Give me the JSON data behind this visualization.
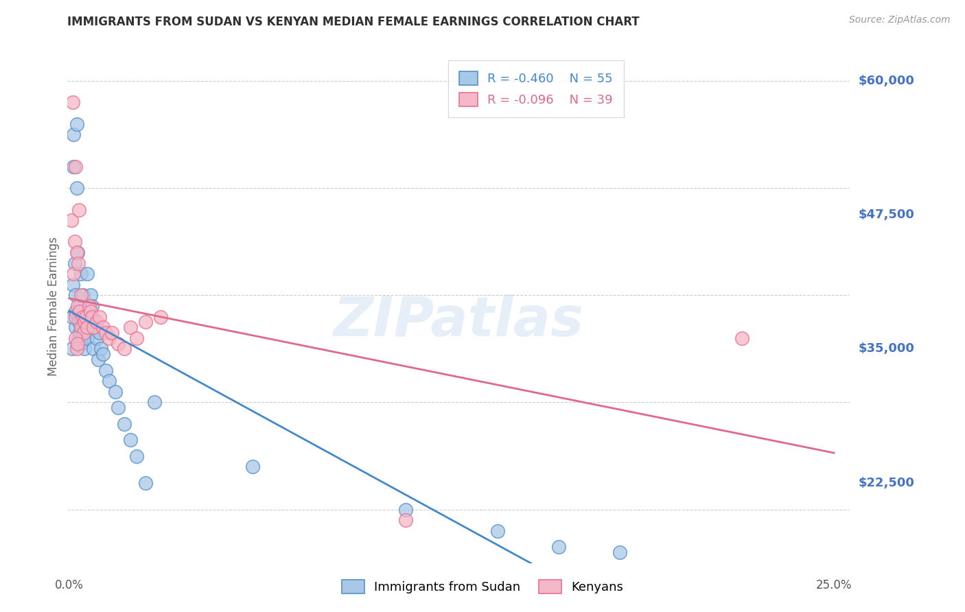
{
  "title": "IMMIGRANTS FROM SUDAN VS KENYAN MEDIAN FEMALE EARNINGS CORRELATION CHART",
  "source": "Source: ZipAtlas.com",
  "ylabel": "Median Female Earnings",
  "ytick_labels": [
    "$60,000",
    "$47,500",
    "$35,000",
    "$22,500"
  ],
  "ytick_values": [
    60000,
    47500,
    35000,
    22500
  ],
  "ymin": 15000,
  "ymax": 63000,
  "xmin": -0.0005,
  "xmax": 0.255,
  "blue_color": "#a8c8e8",
  "pink_color": "#f4b8c8",
  "blue_edge_color": "#5590c8",
  "pink_edge_color": "#e87090",
  "blue_line_color": "#4488cc",
  "pink_line_color": "#e06888",
  "axis_label_color": "#4472c4",
  "title_color": "#303030",
  "watermark": "ZIPatlas",
  "legend_r1": "R = -0.460",
  "legend_n1": "N = 55",
  "legend_r2": "R = -0.096",
  "legend_n2": "N = 39",
  "sudan_x": [
    0.001,
    0.001,
    0.0012,
    0.0015,
    0.0015,
    0.0018,
    0.002,
    0.002,
    0.0022,
    0.0025,
    0.0025,
    0.0028,
    0.003,
    0.003,
    0.0032,
    0.0035,
    0.0035,
    0.0038,
    0.004,
    0.004,
    0.0042,
    0.0045,
    0.0045,
    0.0048,
    0.005,
    0.005,
    0.0055,
    0.0058,
    0.006,
    0.006,
    0.0065,
    0.007,
    0.0072,
    0.0075,
    0.008,
    0.0085,
    0.009,
    0.0095,
    0.01,
    0.0105,
    0.011,
    0.012,
    0.013,
    0.015,
    0.016,
    0.018,
    0.02,
    0.022,
    0.025,
    0.028,
    0.06,
    0.11,
    0.14,
    0.16,
    0.18
  ],
  "sudan_y": [
    38000,
    35000,
    41000,
    55000,
    52000,
    43000,
    37000,
    40000,
    38500,
    56000,
    50000,
    44000,
    38000,
    36000,
    37500,
    39000,
    36500,
    35500,
    42000,
    38000,
    36000,
    40000,
    37000,
    36000,
    38500,
    35000,
    37000,
    36000,
    42000,
    38000,
    37500,
    40000,
    38000,
    39000,
    35000,
    37000,
    36000,
    34000,
    36500,
    35000,
    34500,
    33000,
    32000,
    31000,
    29500,
    28000,
    26500,
    25000,
    22500,
    30000,
    24000,
    20000,
    18000,
    16500,
    16000
  ],
  "kenya_x": [
    0.0008,
    0.0012,
    0.0015,
    0.0018,
    0.002,
    0.0022,
    0.0025,
    0.0028,
    0.003,
    0.0032,
    0.0035,
    0.0038,
    0.004,
    0.0045,
    0.0048,
    0.005,
    0.0055,
    0.006,
    0.0065,
    0.007,
    0.0075,
    0.008,
    0.009,
    0.01,
    0.011,
    0.012,
    0.013,
    0.014,
    0.016,
    0.018,
    0.02,
    0.022,
    0.025,
    0.03,
    0.002,
    0.0025,
    0.11,
    0.22,
    0.0028
  ],
  "kenya_y": [
    47000,
    58000,
    42000,
    45000,
    52000,
    38000,
    44000,
    39000,
    43000,
    48000,
    38500,
    40000,
    37000,
    38000,
    36500,
    37500,
    38000,
    37000,
    39000,
    38500,
    38000,
    37000,
    37500,
    38000,
    37000,
    36500,
    36000,
    36500,
    35500,
    35000,
    37000,
    36000,
    37500,
    38000,
    36000,
    35000,
    19000,
    36000,
    35500
  ]
}
